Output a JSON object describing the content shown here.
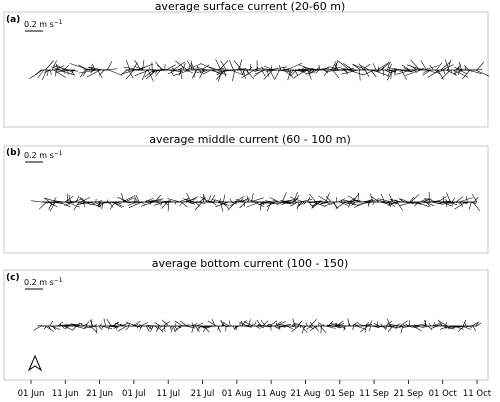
{
  "panels": [
    {
      "tag": "(a)",
      "title": "average surface current (20-60 m)",
      "scale_label": "0.2 m s",
      "scale_exp": "−1"
    },
    {
      "tag": "(b)",
      "title": "average middle current (60 - 100 m)",
      "scale_label": "0.2 m s",
      "scale_exp": "−1"
    },
    {
      "tag": "(c)",
      "title": "average bottom current (100 - 150)",
      "scale_label": "0.2 m s",
      "scale_exp": "−1"
    }
  ],
  "north_arrow": "A",
  "chart_data": {
    "type": "stick-vector",
    "x_ticks": [
      "01 Jun",
      "11 Jun",
      "21 Jun",
      "01 Jul",
      "11 Jul",
      "21 Jul",
      "01 Aug",
      "11 Aug",
      "21 Aug",
      "01 Sep",
      "11 Sep",
      "21 Sep",
      "01 Oct",
      "11 Oct"
    ],
    "x_range": [
      "01 Jun",
      "11 Oct"
    ],
    "scale_bar_speed_m_s": 0.2,
    "panels": [
      {
        "name": "average surface current (20-60 m)",
        "segments": [
          {
            "start": "04 Jun",
            "end": "14 Jun",
            "typical_speed_m_s": 0.15
          },
          {
            "start": "17 Jun",
            "end": "24 Jun",
            "typical_speed_m_s": 0.18
          },
          {
            "start": "29 Jun",
            "end": "11 Oct",
            "typical_speed_m_s": 0.15
          }
        ]
      },
      {
        "name": "average middle current (60 - 100 m)",
        "segments": [
          {
            "start": "04 Jun",
            "end": "11 Oct",
            "typical_speed_m_s": 0.13
          }
        ]
      },
      {
        "name": "average bottom current (100 - 150)",
        "segments": [
          {
            "start": "04 Jun",
            "end": "11 Oct",
            "typical_speed_m_s": 0.1
          }
        ]
      }
    ]
  }
}
